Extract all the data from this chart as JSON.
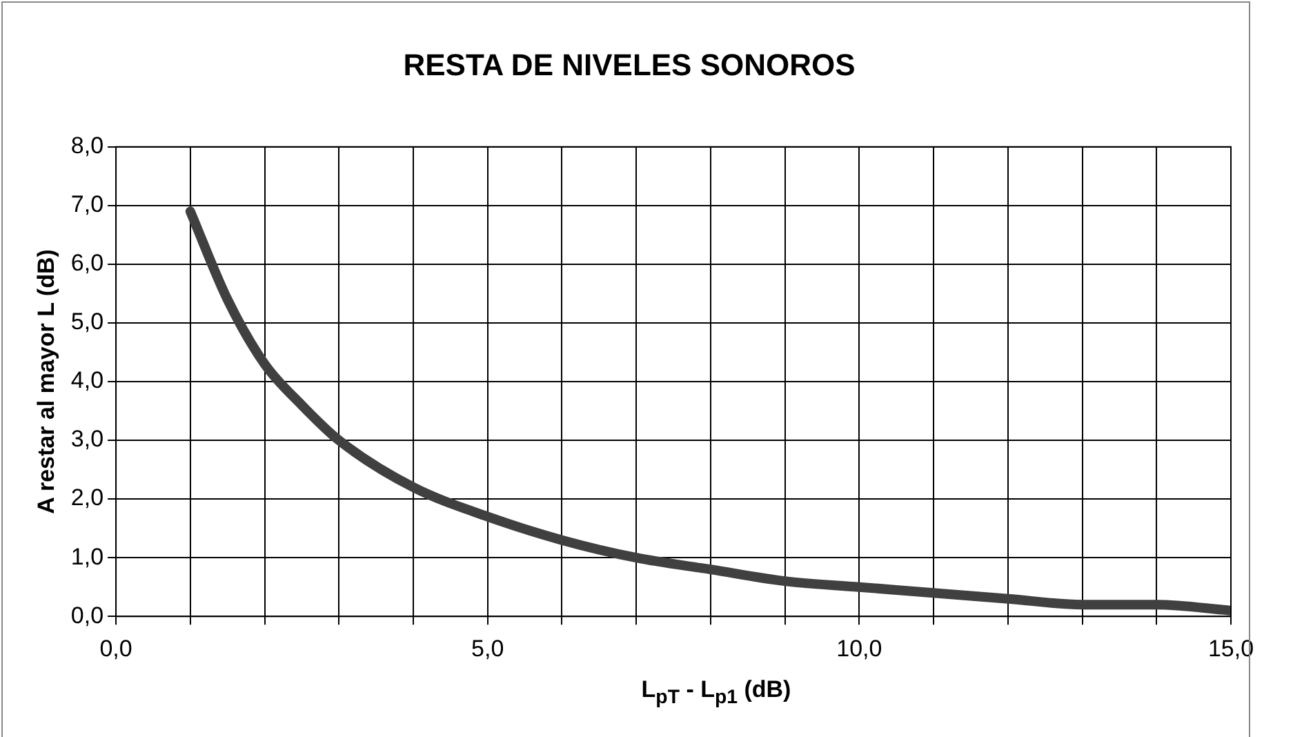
{
  "chart_data": {
    "type": "line",
    "title": "RESTA DE NIVELES SONOROS",
    "xlabel": "L$_{pT}$ -  L$_{p1}$ (dB)",
    "ylabel": "A restar al mayor L (dB)",
    "x": [
      1,
      1.5,
      2,
      2.5,
      3,
      4,
      5,
      6,
      7,
      8,
      9,
      10,
      11,
      12,
      13,
      14,
      15
    ],
    "series": [
      {
        "color": "#404040",
        "values": [
          6.9,
          5.4,
          4.3,
          3.6,
          3.0,
          2.2,
          1.7,
          1.3,
          1.0,
          0.8,
          0.6,
          0.5,
          0.4,
          0.3,
          0.2,
          0.2,
          0.1
        ]
      }
    ],
    "xlim": [
      0,
      15
    ],
    "xticks": [
      {
        "value": 0,
        "label": "0,0"
      },
      {
        "value": 1,
        "label": null
      },
      {
        "value": 2,
        "label": null
      },
      {
        "value": 3,
        "label": null
      },
      {
        "value": 4,
        "label": null
      },
      {
        "value": 5,
        "label": "5,0"
      },
      {
        "value": 6,
        "label": null
      },
      {
        "value": 7,
        "label": null
      },
      {
        "value": 8,
        "label": null
      },
      {
        "value": 9,
        "label": null
      },
      {
        "value": 10,
        "label": "10,0"
      },
      {
        "value": 11,
        "label": null
      },
      {
        "value": 12,
        "label": null
      },
      {
        "value": 13,
        "label": null
      },
      {
        "value": 14,
        "label": null
      },
      {
        "value": 15,
        "label": "15,0"
      }
    ],
    "ylim": [
      0,
      8
    ],
    "yticks": [
      {
        "value": 0,
        "label": "0,0"
      },
      {
        "value": 1,
        "label": "1,0"
      },
      {
        "value": 2,
        "label": "2,0"
      },
      {
        "value": 3,
        "label": "3,0"
      },
      {
        "value": 4,
        "label": "4,0"
      },
      {
        "value": 5,
        "label": "5,0"
      },
      {
        "value": 6,
        "label": "6,0"
      },
      {
        "value": 7,
        "label": "7,0"
      },
      {
        "value": 8,
        "label": "8,0"
      }
    ],
    "grid": true,
    "legend": false,
    "marker": "none",
    "line_style": "solid"
  }
}
